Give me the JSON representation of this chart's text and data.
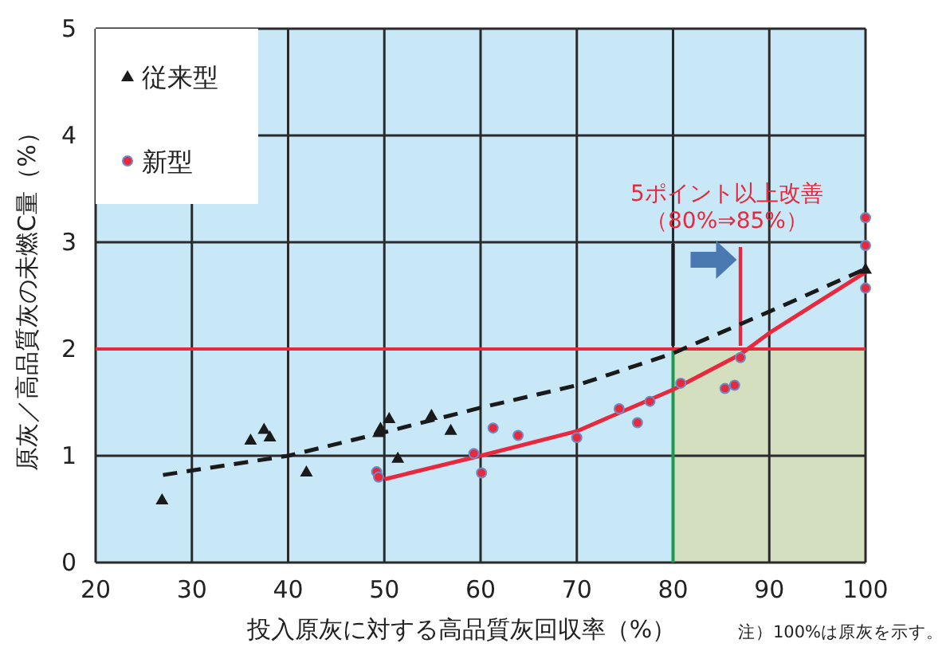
{
  "chart_data": {
    "type": "scatter",
    "xlabel": "投入原灰に対する高品質灰回収率（%）",
    "ylabel": "原灰／高品質灰の未燃C量（%）",
    "xlim": [
      20,
      100
    ],
    "xticks": [
      20,
      30,
      40,
      50,
      60,
      70,
      80,
      90,
      100
    ],
    "ylim": [
      0,
      5
    ],
    "yticks": [
      0,
      1,
      2,
      3,
      4,
      5
    ],
    "grid": true,
    "legend": "top left",
    "series": [
      {
        "name": "従来型",
        "marker": "triangle",
        "color": "#1a1a1a",
        "x": [
          26.9,
          36.1,
          37.5,
          38.1,
          41.9,
          49.4,
          49.6,
          50.5,
          51.4,
          54.9,
          56.9,
          100
        ],
        "values": [
          0.59,
          1.15,
          1.25,
          1.18,
          0.85,
          1.22,
          1.26,
          1.35,
          0.98,
          1.38,
          1.24,
          2.75
        ]
      },
      {
        "name": "新型",
        "marker": "circle",
        "color": "#e8283c",
        "x": [
          49.2,
          49.4,
          59.3,
          60.1,
          61.3,
          63.9,
          70,
          74.4,
          76.3,
          77.6,
          80.8,
          85.4,
          86.4,
          87,
          100,
          100,
          100
        ],
        "values": [
          0.85,
          0.8,
          1.02,
          0.84,
          1.26,
          1.19,
          1.17,
          1.44,
          1.31,
          1.51,
          1.68,
          1.63,
          1.66,
          1.92,
          3.23,
          2.97,
          2.57
        ]
      },
      {
        "type": "line",
        "line_style": "dashed",
        "color": "#1a1a1a",
        "x": [
          27,
          40,
          50,
          60,
          70,
          80,
          90,
          100
        ],
        "values": [
          0.82,
          1.0,
          1.22,
          1.45,
          1.66,
          1.96,
          2.35,
          2.75
        ]
      },
      {
        "type": "line",
        "line_style": "solid",
        "color": "#e8283c",
        "x": [
          50,
          60,
          70,
          80,
          87,
          90,
          100
        ],
        "values": [
          0.78,
          1.0,
          1.23,
          1.62,
          1.95,
          2.15,
          2.72
        ]
      }
    ],
    "ref_lines": [
      {
        "axis": "y",
        "value": 2,
        "color": "#e8283c"
      }
    ],
    "bands": [
      {
        "axis": "x",
        "from": 80,
        "to": 100,
        "color": "#d3dfbf"
      }
    ],
    "annotations": [
      "5ポイント以上改善",
      {
        "text": "（80%⇒85%）",
        "x": 87,
        "y": 2
      },
      "注）100%は原灰を示す。"
    ]
  }
}
